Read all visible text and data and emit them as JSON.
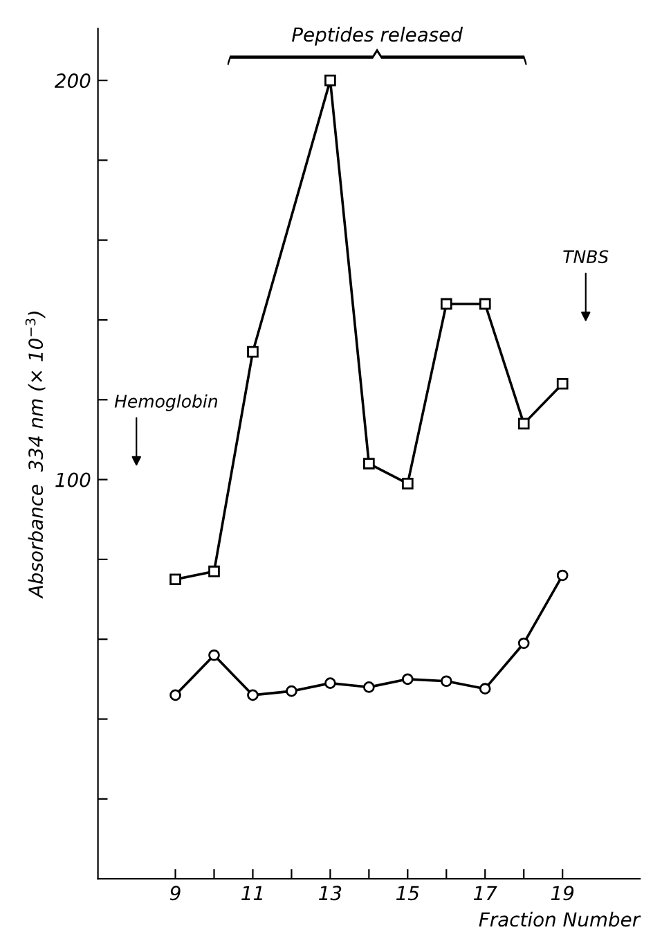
{
  "chart_data": {
    "type": "line",
    "ylabel": "Absorbance  334 nm (× 10$^{−3}$)",
    "xlabel": "Fraction Number",
    "series": [
      {
        "color": "#000000",
        "marker": "square",
        "x": [
          9,
          10,
          11,
          13,
          14,
          15,
          16,
          17,
          18,
          19
        ],
        "values": [
          75,
          77,
          132,
          200,
          104,
          99,
          144,
          144,
          114,
          124
        ]
      },
      {
        "color": "#000000",
        "marker": "circle",
        "x": [
          9,
          10,
          11,
          12,
          13,
          14,
          15,
          16,
          17,
          18,
          19
        ],
        "values": [
          46,
          56,
          46,
          47,
          49,
          48,
          50,
          49.5,
          47.6,
          59,
          76
        ]
      }
    ],
    "xlim": [
      7,
      21
    ],
    "ylim": [
      0,
      213
    ],
    "xticks": [
      {
        "value": 9,
        "label": "9"
      },
      {
        "value": 10,
        "label": null
      },
      {
        "value": 11,
        "label": "11"
      },
      {
        "value": 12,
        "label": null
      },
      {
        "value": 13,
        "label": "13"
      },
      {
        "value": 14,
        "label": null
      },
      {
        "value": 15,
        "label": "15"
      },
      {
        "value": 16,
        "label": null
      },
      {
        "value": 17,
        "label": "17"
      },
      {
        "value": 18,
        "label": null
      },
      {
        "value": 19,
        "label": "19"
      }
    ],
    "yticks": [
      {
        "value": 20,
        "label": null
      },
      {
        "value": 40,
        "label": null
      },
      {
        "value": 60,
        "label": null
      },
      {
        "value": 80,
        "label": null
      },
      100,
      {
        "value": 120,
        "label": null
      },
      {
        "value": 140,
        "label": null
      },
      {
        "value": 160,
        "label": null
      },
      {
        "value": 180,
        "label": null
      },
      200
    ],
    "annotations": [
      "Peptides released",
      "Hemoglobin",
      "TNBS"
    ],
    "grid": false,
    "legend": false,
    "line_style": "solid"
  }
}
